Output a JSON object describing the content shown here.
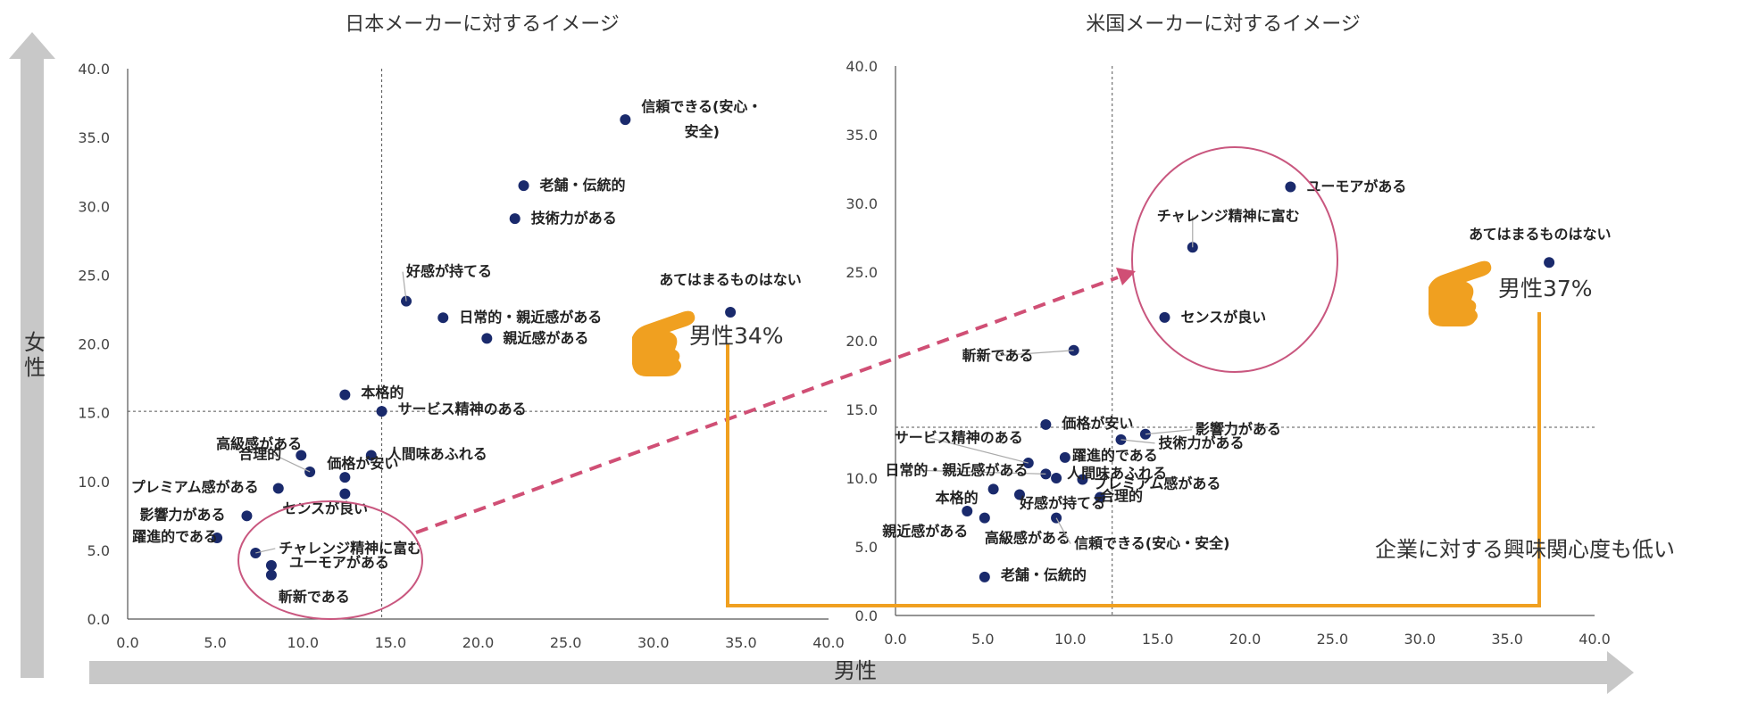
{
  "axis_labels": {
    "female": "女性",
    "male": "男性"
  },
  "annotations": {
    "jp_male_pct": "男性34%",
    "us_male_pct": "男性37%",
    "interest_note": "企業に対する興味関心度も低い"
  },
  "colors": {
    "dot": "#1a2a6c",
    "arrow_gray": "#c8c8c8",
    "circle": "#c9577f",
    "dashed_arrow": "#d04f75",
    "bracket": "#f0a020",
    "hand": "#f0a020"
  },
  "chart_data": [
    {
      "type": "scatter",
      "title": "日本メーカーに対するイメージ",
      "xlim": [
        0,
        40
      ],
      "ylim": [
        0,
        40
      ],
      "xticks": [
        "0.0",
        "5.0",
        "10.0",
        "15.0",
        "20.0",
        "25.0",
        "30.0",
        "35.0",
        "40.0"
      ],
      "yticks": [
        "0.0",
        "5.0",
        "10.0",
        "15.0",
        "20.0",
        "25.0",
        "30.0",
        "35.0",
        "40.0"
      ],
      "ref_lines": {
        "x": 14.5,
        "y": 15.1
      },
      "points": [
        {
          "label": "信頼できる(安心・安全)",
          "line1": "信頼できる(安心・",
          "line2": "安全)",
          "x": 28.4,
          "y": 36.3
        },
        {
          "label": "老舗・伝統的",
          "x": 22.6,
          "y": 31.5
        },
        {
          "label": "技術力がある",
          "x": 22.1,
          "y": 29.1
        },
        {
          "label": "好感が持てる",
          "x": 15.9,
          "y": 23.1
        },
        {
          "label": "日常的・親近感がある",
          "x": 18.0,
          "y": 21.9
        },
        {
          "label": "親近感がある",
          "x": 20.5,
          "y": 20.4
        },
        {
          "label": "あてはまるものはない",
          "x": 34.4,
          "y": 22.3
        },
        {
          "label": "本格的",
          "x": 12.4,
          "y": 16.3
        },
        {
          "label": "サービス精神のある",
          "x": 14.5,
          "y": 15.1
        },
        {
          "label": "高級感がある",
          "x": 10.4,
          "y": 10.7
        },
        {
          "label": "合理的",
          "x": 9.9,
          "y": 11.9
        },
        {
          "label": "人間味あふれる",
          "x": 13.9,
          "y": 11.9
        },
        {
          "label": "価格が安い",
          "x": 12.4,
          "y": 10.3
        },
        {
          "label": "プレミアム感がある",
          "x": 8.6,
          "y": 9.5
        },
        {
          "label": "センスが良い",
          "x": 12.4,
          "y": 9.1
        },
        {
          "label": "影響力がある",
          "x": 6.8,
          "y": 7.5
        },
        {
          "label": "躍進的である",
          "x": 5.1,
          "y": 5.9
        },
        {
          "label": "チャレンジ精神に富む",
          "x": 7.3,
          "y": 4.8
        },
        {
          "label": "ユーモアがある",
          "x": 8.2,
          "y": 3.9
        },
        {
          "label": "斬新である",
          "x": 8.2,
          "y": 3.2
        }
      ]
    },
    {
      "type": "scatter",
      "title": "米国メーカーに対するイメージ",
      "xlim": [
        0,
        40
      ],
      "ylim": [
        0,
        40
      ],
      "xticks": [
        "0.0",
        "5.0",
        "10.0",
        "15.0",
        "20.0",
        "25.0",
        "30.0",
        "35.0",
        "40.0"
      ],
      "yticks": [
        "0.0",
        "5.0",
        "10.0",
        "15.0",
        "20.0",
        "25.0",
        "30.0",
        "35.0",
        "40.0"
      ],
      "ref_lines": {
        "x": 12.4,
        "y": 13.7
      },
      "points": [
        {
          "label": "ユーモアがある",
          "x": 22.6,
          "y": 31.2
        },
        {
          "label": "チャレンジ精神に富む",
          "x": 17.0,
          "y": 26.8
        },
        {
          "label": "センスが良い",
          "x": 15.4,
          "y": 21.7
        },
        {
          "label": "あてはまるものはない",
          "x": 37.4,
          "y": 25.7
        },
        {
          "label": "斬新である",
          "x": 10.2,
          "y": 19.3
        },
        {
          "label": "価格が安い",
          "x": 8.6,
          "y": 13.9
        },
        {
          "label": "影響力がある",
          "x": 14.3,
          "y": 13.2
        },
        {
          "label": "サービス精神のある",
          "x": 7.6,
          "y": 11.1
        },
        {
          "label": "躍進的である",
          "x": 9.7,
          "y": 11.5
        },
        {
          "label": "技術力がある",
          "x": 12.9,
          "y": 12.8
        },
        {
          "label": "日常的・親近感がある",
          "x": 8.6,
          "y": 10.3
        },
        {
          "label": "人間味あふれる",
          "x": 9.2,
          "y": 10.0
        },
        {
          "label": "プレミアム感がある",
          "x": 10.7,
          "y": 9.9
        },
        {
          "label": "本格的",
          "x": 5.6,
          "y": 9.2
        },
        {
          "label": "好感が持てる",
          "x": 7.1,
          "y": 8.8
        },
        {
          "label": "合理的",
          "x": 11.7,
          "y": 8.6
        },
        {
          "label": "親近感がある",
          "x": 4.1,
          "y": 7.6
        },
        {
          "label": "高級感がある",
          "x": 5.1,
          "y": 7.1
        },
        {
          "label": "信頼できる(安心・安全)",
          "x": 9.2,
          "y": 7.1
        },
        {
          "label": "老舗・伝統的",
          "x": 5.1,
          "y": 2.8
        }
      ]
    }
  ]
}
